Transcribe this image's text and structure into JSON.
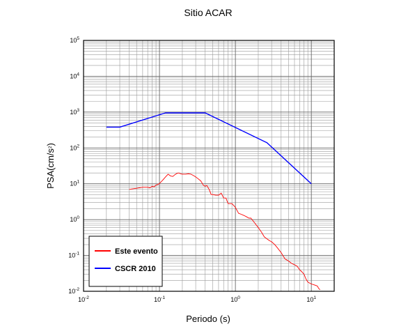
{
  "chart_data": {
    "type": "line",
    "title": "Sitio ACAR",
    "xlabel": "Periodo (s)",
    "ylabel": {
      "base": "PSA(cm/s",
      "sup": "2",
      "end": ")"
    },
    "xscale": "log",
    "yscale": "log",
    "xlim": [
      0.01,
      20
    ],
    "ylim": [
      0.01,
      100000
    ],
    "grid": true,
    "legend_position": "bottom-left",
    "x_ticks": [
      {
        "base": "10",
        "exp": "-2",
        "value": 0.01
      },
      {
        "base": "10",
        "exp": "-1",
        "value": 0.1
      },
      {
        "base": "10",
        "exp": "0",
        "value": 1
      },
      {
        "base": "10",
        "exp": "1",
        "value": 10
      }
    ],
    "y_ticks": [
      {
        "base": "10",
        "exp": "-2",
        "value": 0.01
      },
      {
        "base": "10",
        "exp": "-1",
        "value": 0.1
      },
      {
        "base": "10",
        "exp": "0",
        "value": 1
      },
      {
        "base": "10",
        "exp": "1",
        "value": 10
      },
      {
        "base": "10",
        "exp": "2",
        "value": 100
      },
      {
        "base": "10",
        "exp": "3",
        "value": 1000
      },
      {
        "base": "10",
        "exp": "4",
        "value": 10000
      },
      {
        "base": "10",
        "exp": "5",
        "value": 100000
      }
    ],
    "series": [
      {
        "name": "Este evento",
        "color": "#ff0000",
        "x": [
          0.04,
          0.05,
          0.06,
          0.07,
          0.075,
          0.08,
          0.085,
          0.09,
          0.095,
          0.1,
          0.11,
          0.12,
          0.13,
          0.14,
          0.15,
          0.16,
          0.17,
          0.18,
          0.19,
          0.2,
          0.22,
          0.24,
          0.26,
          0.28,
          0.3,
          0.32,
          0.35,
          0.38,
          0.4,
          0.42,
          0.45,
          0.48,
          0.5,
          0.55,
          0.6,
          0.65,
          0.7,
          0.75,
          0.8,
          0.85,
          0.9,
          1.0,
          1.1,
          1.2,
          1.3,
          1.4,
          1.5,
          1.6,
          1.8,
          2.0,
          2.2,
          2.4,
          2.6,
          2.8,
          3.0,
          3.3,
          3.6,
          4.0,
          4.5,
          5.0,
          5.5,
          6.0,
          6.5,
          7.0,
          7.5,
          8.0,
          8.5,
          9.0,
          10.0,
          11.0,
          12.0,
          12.5,
          13.0
        ],
        "y": [
          7.0,
          7.5,
          8.0,
          8.0,
          7.7,
          8.5,
          8.2,
          9.2,
          9.5,
          10.2,
          12.5,
          15.5,
          18.5,
          16.5,
          16.0,
          18.0,
          19.5,
          20.0,
          19.0,
          18.5,
          18.5,
          19.0,
          18.5,
          17.0,
          15.5,
          14.0,
          12.0,
          9.0,
          8.5,
          9.0,
          7.0,
          5.0,
          5.0,
          4.8,
          4.8,
          5.5,
          4.0,
          4.0,
          2.8,
          2.8,
          2.8,
          2.2,
          1.5,
          1.4,
          1.3,
          1.2,
          1.1,
          1.1,
          0.8,
          0.6,
          0.45,
          0.33,
          0.29,
          0.26,
          0.24,
          0.2,
          0.16,
          0.12,
          0.08,
          0.07,
          0.06,
          0.055,
          0.05,
          0.04,
          0.035,
          0.03,
          0.022,
          0.018,
          0.016,
          0.015,
          0.014,
          0.012,
          0.011
        ]
      },
      {
        "name": "CSCR 2010",
        "color": "#0000ff",
        "x": [
          0.02,
          0.03,
          0.12,
          0.4,
          2.6,
          10.0
        ],
        "y": [
          380,
          380,
          950,
          950,
          140,
          10
        ]
      }
    ]
  }
}
